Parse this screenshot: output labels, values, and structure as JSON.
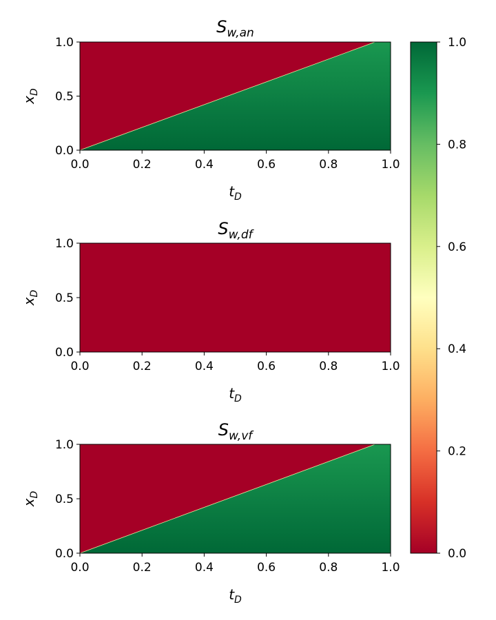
{
  "chart_data": [
    {
      "type": "heatmap",
      "title": "S_{w,an}",
      "title_base": "S",
      "title_sub": "w,an",
      "xlabel_base": "t",
      "xlabel_sub": "D",
      "ylabel_base": "x",
      "ylabel_sub": "D",
      "xlim": [
        0.0,
        1.0
      ],
      "ylim": [
        0.0,
        1.0
      ],
      "x_ticks": [
        "0.0",
        "0.2",
        "0.4",
        "0.6",
        "0.8",
        "1.0"
      ],
      "y_ticks": [
        "0.0",
        "0.5",
        "1.0"
      ],
      "field": "Swept region below the line x_D = 1.05 t_D; value 1.0 near x_D = 0 decreasing to about 0.9 at the front; 0.0 above the front",
      "front": {
        "t_D": [
          0.0,
          0.95
        ],
        "x_D": [
          0.0,
          1.0
        ]
      },
      "value_at_front": 0.9,
      "value_at_bottom": 1.0,
      "value_above_front": 0.0
    },
    {
      "type": "heatmap",
      "title": "S_{w,df}",
      "title_base": "S",
      "title_sub": "w,df",
      "xlabel_base": "t",
      "xlabel_sub": "D",
      "ylabel_base": "x",
      "ylabel_sub": "D",
      "xlim": [
        0.0,
        1.0
      ],
      "ylim": [
        0.0,
        1.0
      ],
      "x_ticks": [
        "0.0",
        "0.2",
        "0.4",
        "0.6",
        "0.8",
        "1.0"
      ],
      "y_ticks": [
        "0.0",
        "0.5",
        "1.0"
      ],
      "field": "Uniform value 0.0 over the whole domain",
      "value_uniform": 0.0
    },
    {
      "type": "heatmap",
      "title": "S_{w,vf}",
      "title_base": "S",
      "title_sub": "w,vf",
      "xlabel_base": "t",
      "xlabel_sub": "D",
      "ylabel_base": "x",
      "ylabel_sub": "D",
      "xlim": [
        0.0,
        1.0
      ],
      "ylim": [
        0.0,
        1.0
      ],
      "x_ticks": [
        "0.0",
        "0.2",
        "0.4",
        "0.6",
        "0.8",
        "1.0"
      ],
      "y_ticks": [
        "0.0",
        "0.5",
        "1.0"
      ],
      "field": "Swept region below the line x_D = 1.05 t_D; value 1.0 near x_D = 0 decreasing to about 0.9 at the front; 0.0 above the front",
      "front": {
        "t_D": [
          0.0,
          0.95
        ],
        "x_D": [
          0.0,
          1.0
        ]
      },
      "value_at_front": 0.9,
      "value_at_bottom": 1.0,
      "value_above_front": 0.0
    }
  ],
  "colorbar": {
    "colormap": "RdYlGn",
    "range": [
      0.0,
      1.0
    ],
    "ticks": [
      "0.0",
      "0.2",
      "0.4",
      "0.6",
      "0.8",
      "1.0"
    ],
    "colors": {
      "low": "#a50026",
      "mid": "#ffffbf",
      "high": "#006837"
    }
  }
}
